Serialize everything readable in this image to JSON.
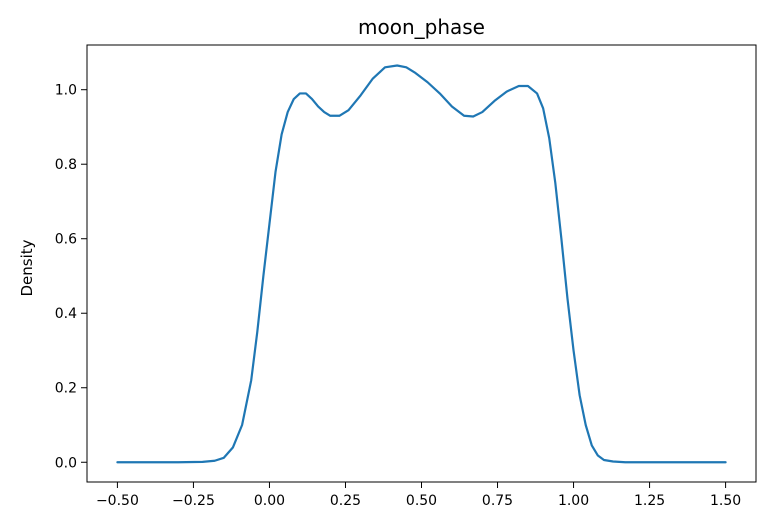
{
  "chart_data": {
    "type": "line",
    "title": "moon_phase",
    "xlabel": "",
    "ylabel": "Density",
    "xlim": [
      -0.6,
      1.6
    ],
    "ylim": [
      -0.053,
      1.12
    ],
    "xticks": [
      -0.5,
      -0.25,
      0.0,
      0.25,
      0.5,
      0.75,
      1.0,
      1.25,
      1.5
    ],
    "xtick_labels": [
      "−0.50",
      "−0.25",
      "0.00",
      "0.25",
      "0.50",
      "0.75",
      "1.00",
      "1.25",
      "1.50"
    ],
    "yticks": [
      0.0,
      0.2,
      0.4,
      0.6,
      0.8,
      1.0
    ],
    "ytick_labels": [
      "0.0",
      "0.2",
      "0.4",
      "0.6",
      "0.8",
      "1.0"
    ],
    "grid": false,
    "series": [
      {
        "color": "#1f77b4",
        "x": [
          -0.5,
          -0.3,
          -0.22,
          -0.18,
          -0.15,
          -0.12,
          -0.09,
          -0.06,
          -0.04,
          -0.02,
          0.0,
          0.02,
          0.04,
          0.06,
          0.08,
          0.1,
          0.12,
          0.14,
          0.16,
          0.18,
          0.2,
          0.23,
          0.26,
          0.3,
          0.34,
          0.38,
          0.42,
          0.45,
          0.48,
          0.52,
          0.56,
          0.6,
          0.64,
          0.67,
          0.7,
          0.74,
          0.78,
          0.82,
          0.85,
          0.88,
          0.9,
          0.92,
          0.94,
          0.96,
          0.98,
          1.0,
          1.02,
          1.04,
          1.06,
          1.08,
          1.1,
          1.13,
          1.17,
          1.22,
          1.3,
          1.5
        ],
        "y": [
          0.0,
          0.0,
          0.001,
          0.004,
          0.012,
          0.04,
          0.1,
          0.22,
          0.35,
          0.5,
          0.64,
          0.78,
          0.88,
          0.94,
          0.975,
          0.99,
          0.99,
          0.975,
          0.955,
          0.94,
          0.93,
          0.93,
          0.945,
          0.985,
          1.03,
          1.06,
          1.065,
          1.06,
          1.045,
          1.02,
          0.99,
          0.955,
          0.93,
          0.928,
          0.94,
          0.97,
          0.995,
          1.01,
          1.01,
          0.99,
          0.95,
          0.87,
          0.75,
          0.6,
          0.44,
          0.3,
          0.18,
          0.1,
          0.045,
          0.018,
          0.006,
          0.002,
          0.0,
          0.0,
          0.0,
          0.0
        ]
      }
    ]
  }
}
